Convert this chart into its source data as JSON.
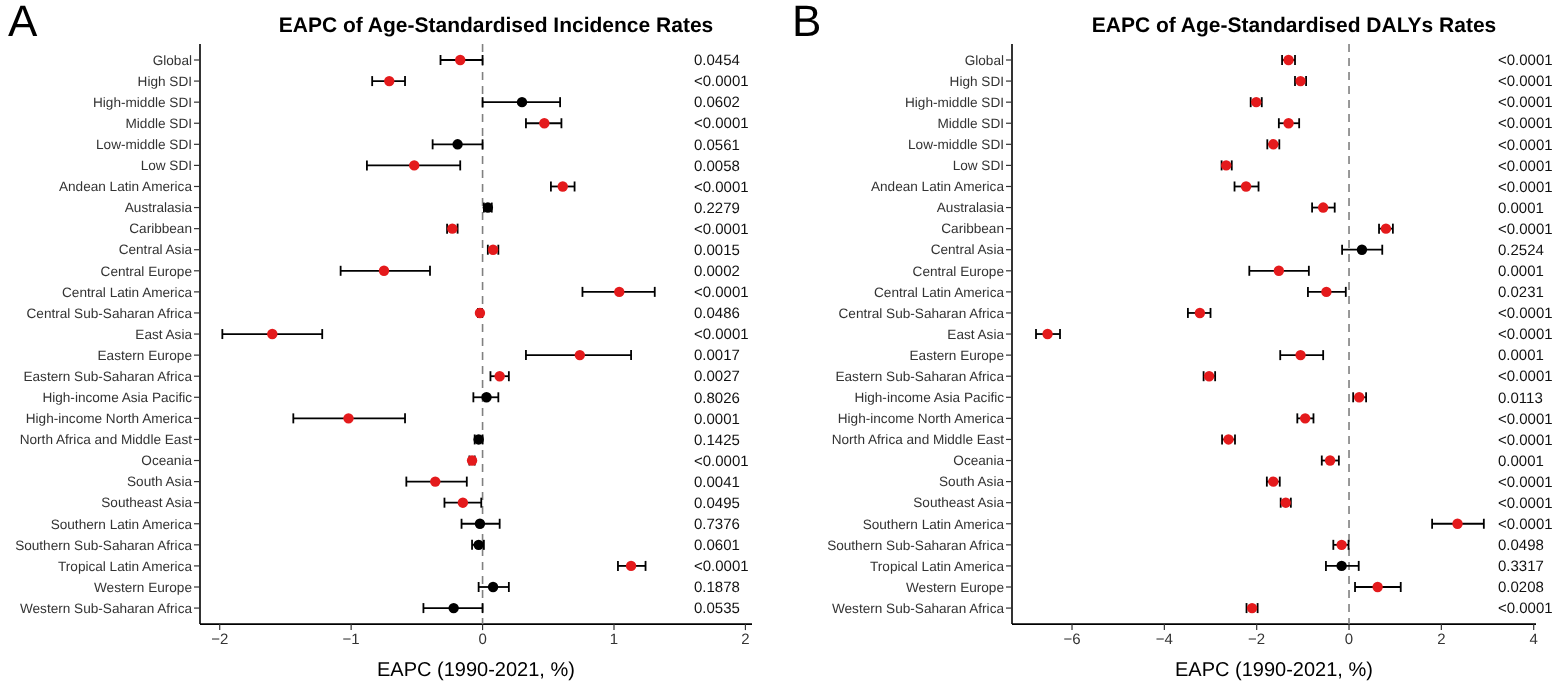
{
  "chart_data": [
    {
      "type": "scatter",
      "orientation": "horizontal",
      "title": "EAPC of Age-Standardised Incidence Rates",
      "xlabel": "EAPC (1990-2021, %)",
      "marker": "circle",
      "annotations": [
        "A"
      ],
      "categories": [
        "Global",
        "High SDI",
        "High-middle SDI",
        "Middle SDI",
        "Low-middle SDI",
        "Low SDI",
        "Andean Latin America",
        "Australasia",
        "Caribbean",
        "Central Asia",
        "Central Europe",
        "Central Latin America",
        "Central Sub-Saharan Africa",
        "East Asia",
        "Eastern Europe",
        "Eastern Sub-Saharan Africa",
        "High-income Asia Pacific",
        "High-income North America",
        "North Africa and Middle East",
        "Oceania",
        "South Asia",
        "Southeast Asia",
        "Southern Latin America",
        "Southern Sub-Saharan Africa",
        "Tropical Latin America",
        "Western Europe",
        "Western Sub-Saharan Africa"
      ],
      "y2_categories": [
        "0.0454",
        "<0.0001",
        "0.0602",
        "<0.0001",
        "0.0561",
        "0.0058",
        "<0.0001",
        "0.2279",
        "<0.0001",
        "0.0015",
        "0.0002",
        "<0.0001",
        "0.0486",
        "<0.0001",
        "0.0017",
        "0.0027",
        "0.8026",
        "0.0001",
        "0.1425",
        "<0.0001",
        "0.0041",
        "0.0495",
        "0.7376",
        "0.0601",
        "<0.0001",
        "0.1878",
        "0.0535"
      ],
      "values": [
        -0.17,
        -0.71,
        0.3,
        0.47,
        -0.19,
        -0.52,
        0.61,
        0.04,
        -0.23,
        0.08,
        -0.75,
        1.04,
        -0.02,
        -1.6,
        0.74,
        0.13,
        0.03,
        -1.02,
        -0.03,
        -0.08,
        -0.36,
        -0.15,
        -0.02,
        -0.03,
        1.13,
        0.08,
        -0.22
      ],
      "errors": [
        [
          -0.32,
          0.0
        ],
        [
          -0.84,
          -0.59
        ],
        [
          0.0,
          0.59
        ],
        [
          0.33,
          0.6
        ],
        [
          -0.38,
          0.0
        ],
        [
          -0.88,
          -0.17
        ],
        [
          0.52,
          0.7
        ],
        [
          0.01,
          0.07
        ],
        [
          -0.27,
          -0.19
        ],
        [
          0.04,
          0.12
        ],
        [
          -1.08,
          -0.4
        ],
        [
          0.76,
          1.31
        ],
        [
          -0.035,
          -0.005
        ],
        [
          -1.98,
          -1.22
        ],
        [
          0.33,
          1.13
        ],
        [
          0.06,
          0.2
        ],
        [
          -0.07,
          0.12
        ],
        [
          -1.44,
          -0.59
        ],
        [
          -0.06,
          0.0
        ],
        [
          -0.1,
          -0.06
        ],
        [
          -0.58,
          -0.12
        ],
        [
          -0.29,
          -0.01
        ],
        [
          -0.16,
          0.13
        ],
        [
          -0.08,
          0.01
        ],
        [
          1.03,
          1.24
        ],
        [
          -0.03,
          0.2
        ],
        [
          -0.45,
          0.0
        ]
      ],
      "colors": [
        "#e41a1c",
        "#e41a1c",
        "#000000",
        "#e41a1c",
        "#000000",
        "#e41a1c",
        "#e41a1c",
        "#000000",
        "#e41a1c",
        "#e41a1c",
        "#e41a1c",
        "#e41a1c",
        "#e41a1c",
        "#e41a1c",
        "#e41a1c",
        "#e41a1c",
        "#000000",
        "#e41a1c",
        "#000000",
        "#e41a1c",
        "#e41a1c",
        "#e41a1c",
        "#000000",
        "#000000",
        "#e41a1c",
        "#000000",
        "#000000"
      ],
      "xlim": [
        -2.15,
        2.05
      ],
      "xticks": [
        -2,
        -1,
        0,
        1,
        2
      ],
      "ref_lines": [
        {
          "axis": "x",
          "value": 0,
          "color": "#808080",
          "line_style": "dashed"
        }
      ]
    },
    {
      "type": "scatter",
      "orientation": "horizontal",
      "title": "EAPC of Age-Standardised DALYs Rates",
      "xlabel": "EAPC (1990-2021, %)",
      "marker": "circle",
      "annotations": [
        "B"
      ],
      "categories": [
        "Global",
        "High SDI",
        "High-middle SDI",
        "Middle SDI",
        "Low-middle SDI",
        "Low SDI",
        "Andean Latin America",
        "Australasia",
        "Caribbean",
        "Central Asia",
        "Central Europe",
        "Central Latin America",
        "Central Sub-Saharan Africa",
        "East Asia",
        "Eastern Europe",
        "Eastern Sub-Saharan Africa",
        "High-income Asia Pacific",
        "High-income North America",
        "North Africa and Middle East",
        "Oceania",
        "South Asia",
        "Southeast Asia",
        "Southern Latin America",
        "Southern Sub-Saharan Africa",
        "Tropical Latin America",
        "Western Europe",
        "Western Sub-Saharan Africa"
      ],
      "y2_categories": [
        "<0.0001",
        "<0.0001",
        "<0.0001",
        "<0.0001",
        "<0.0001",
        "<0.0001",
        "<0.0001",
        "0.0001",
        "<0.0001",
        "0.2524",
        "0.0001",
        "0.0231",
        "<0.0001",
        "<0.0001",
        "0.0001",
        "<0.0001",
        "0.0113",
        "<0.0001",
        "<0.0001",
        "0.0001",
        "<0.0001",
        "<0.0001",
        "<0.0001",
        "0.0498",
        "0.3317",
        "0.0208",
        "<0.0001"
      ],
      "values": [
        -1.31,
        -1.05,
        -2.01,
        -1.31,
        -1.64,
        -2.66,
        -2.23,
        -0.56,
        0.8,
        0.28,
        -1.52,
        -0.49,
        -3.23,
        -6.53,
        -1.05,
        -3.03,
        0.22,
        -0.95,
        -2.61,
        -0.41,
        -1.64,
        -1.37,
        2.35,
        -0.16,
        -0.16,
        0.62,
        -2.1
      ],
      "errors": [
        [
          -1.45,
          -1.17
        ],
        [
          -1.17,
          -0.93
        ],
        [
          -2.13,
          -1.89
        ],
        [
          -1.52,
          -1.08
        ],
        [
          -1.77,
          -1.51
        ],
        [
          -2.76,
          -2.54
        ],
        [
          -2.48,
          -1.96
        ],
        [
          -0.8,
          -0.31
        ],
        [
          0.65,
          0.95
        ],
        [
          -0.15,
          0.72
        ],
        [
          -2.16,
          -0.87
        ],
        [
          -0.89,
          -0.07
        ],
        [
          -3.49,
          -3.0
        ],
        [
          -6.78,
          -6.26
        ],
        [
          -1.49,
          -0.56
        ],
        [
          -3.15,
          -2.9
        ],
        [
          0.09,
          0.37
        ],
        [
          -1.12,
          -0.77
        ],
        [
          -2.75,
          -2.47
        ],
        [
          -0.59,
          -0.22
        ],
        [
          -1.78,
          -1.5
        ],
        [
          -1.48,
          -1.26
        ],
        [
          1.8,
          2.92
        ],
        [
          -0.34,
          -0.01
        ],
        [
          -0.5,
          0.21
        ],
        [
          0.13,
          1.12
        ],
        [
          -2.22,
          -1.98
        ]
      ],
      "colors": [
        "#e41a1c",
        "#e41a1c",
        "#e41a1c",
        "#e41a1c",
        "#e41a1c",
        "#e41a1c",
        "#e41a1c",
        "#e41a1c",
        "#e41a1c",
        "#000000",
        "#e41a1c",
        "#e41a1c",
        "#e41a1c",
        "#e41a1c",
        "#e41a1c",
        "#e41a1c",
        "#e41a1c",
        "#e41a1c",
        "#e41a1c",
        "#e41a1c",
        "#e41a1c",
        "#e41a1c",
        "#e41a1c",
        "#e41a1c",
        "#000000",
        "#e41a1c",
        "#e41a1c"
      ],
      "xlim": [
        -7.3,
        4.05
      ],
      "xticks": [
        -6,
        -4,
        -2,
        0,
        2,
        4
      ],
      "ref_lines": [
        {
          "axis": "x",
          "value": 0,
          "color": "#808080",
          "line_style": "dashed"
        }
      ]
    }
  ]
}
